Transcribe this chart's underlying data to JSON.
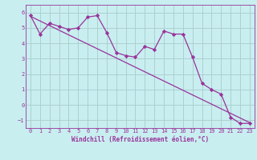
{
  "x": [
    0,
    1,
    2,
    3,
    4,
    5,
    6,
    7,
    8,
    9,
    10,
    11,
    12,
    13,
    14,
    15,
    16,
    17,
    18,
    19,
    20,
    21,
    22,
    23
  ],
  "y_data": [
    5.8,
    4.6,
    5.3,
    5.1,
    4.9,
    5.0,
    5.7,
    5.8,
    4.7,
    3.4,
    3.2,
    3.1,
    3.8,
    3.6,
    4.8,
    4.6,
    4.6,
    3.1,
    1.4,
    1.0,
    0.7,
    -0.8,
    -1.2,
    -1.2
  ],
  "y_trend": [
    5.75,
    5.45,
    5.15,
    4.85,
    4.55,
    4.25,
    3.95,
    3.65,
    3.35,
    3.05,
    2.75,
    2.45,
    2.15,
    1.85,
    1.55,
    1.25,
    0.95,
    0.65,
    0.35,
    0.05,
    -0.25,
    -0.55,
    -0.85,
    -1.15
  ],
  "line_color": "#993399",
  "bg_color": "#c8eef0",
  "grid_color": "#aacccc",
  "xlabel": "Windchill (Refroidissement éolien,°C)",
  "xlim": [
    -0.5,
    23.5
  ],
  "ylim": [
    -1.5,
    6.5
  ],
  "yticks": [
    -1,
    0,
    1,
    2,
    3,
    4,
    5,
    6
  ],
  "xticks": [
    0,
    1,
    2,
    3,
    4,
    5,
    6,
    7,
    8,
    9,
    10,
    11,
    12,
    13,
    14,
    15,
    16,
    17,
    18,
    19,
    20,
    21,
    22,
    23
  ],
  "marker": "D",
  "marker_size": 2.2,
  "line_width": 0.9,
  "tick_fontsize": 5.0,
  "xlabel_fontsize": 5.5
}
